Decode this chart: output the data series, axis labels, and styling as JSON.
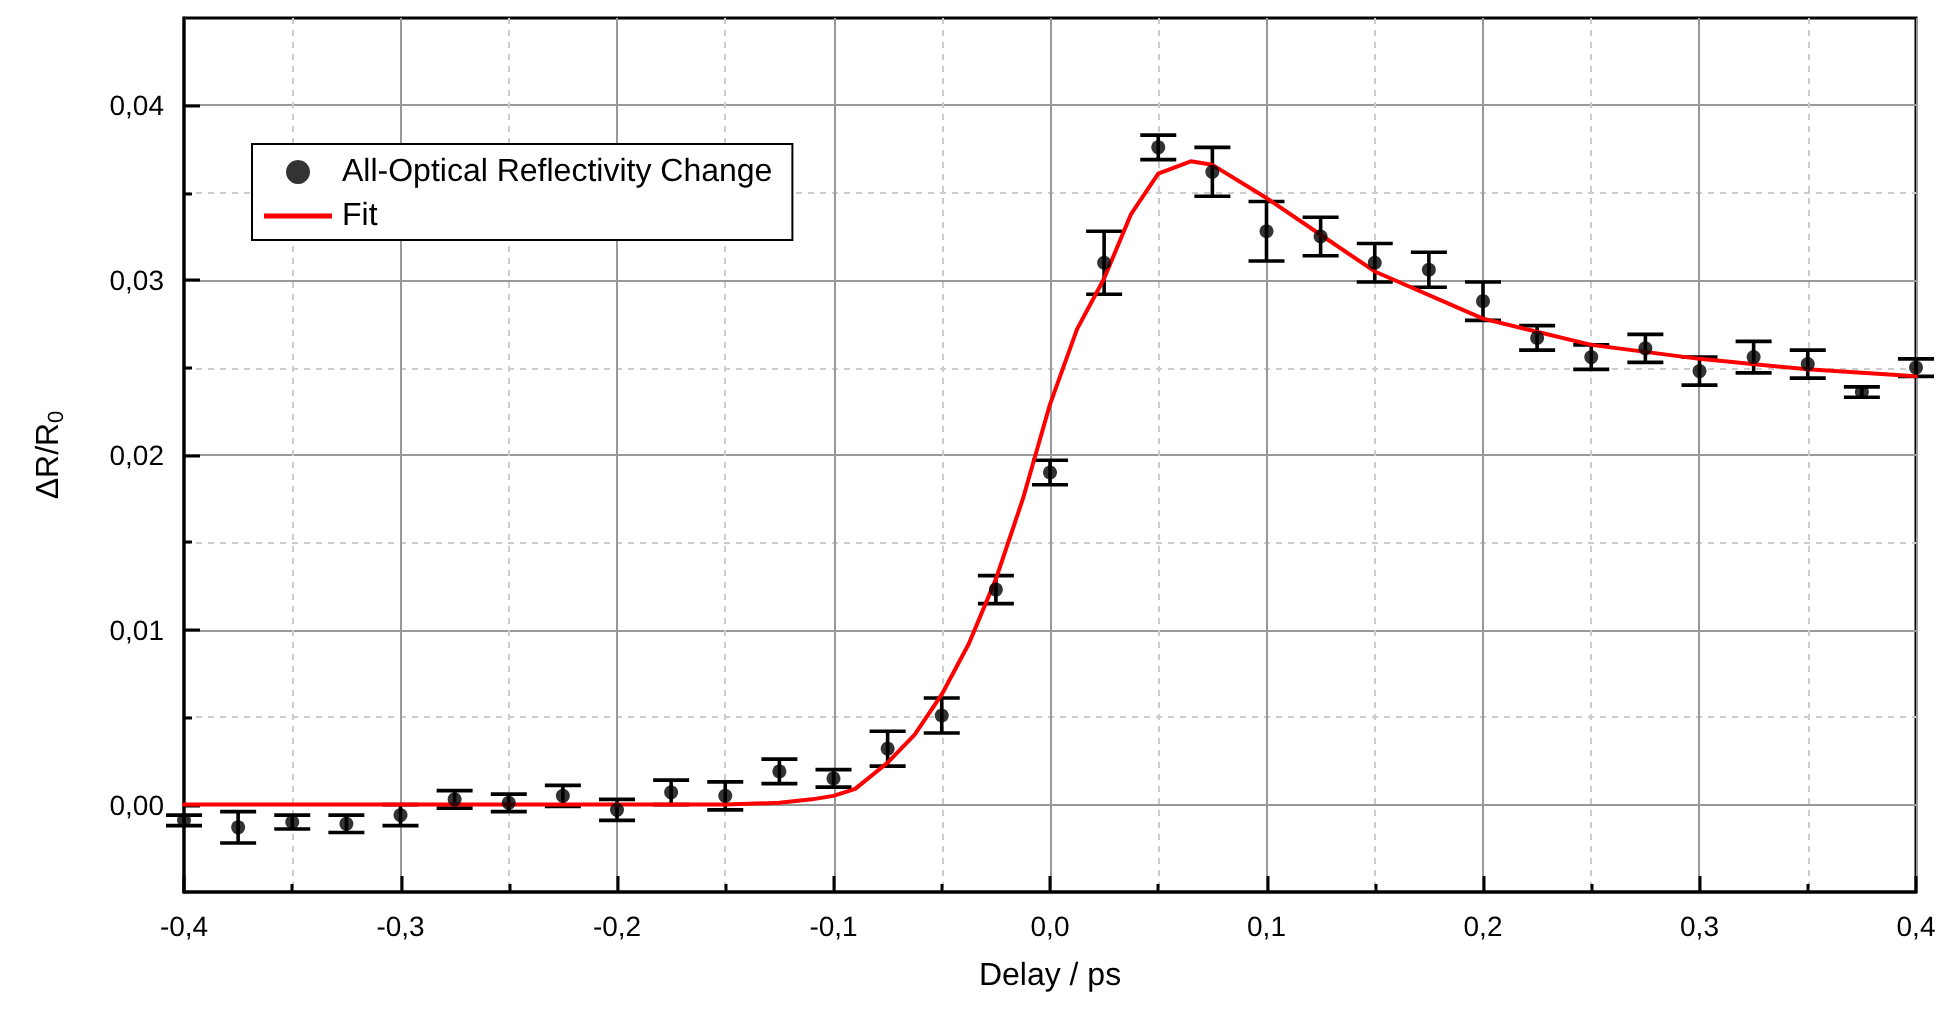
{
  "chart_data": {
    "type": "scatter",
    "xlabel": "Delay / ps",
    "ylabel": "ΔR/R$_{0}$",
    "x": [
      -0.4,
      -0.375,
      -0.35,
      -0.325,
      -0.3,
      -0.275,
      -0.25,
      -0.225,
      -0.2,
      -0.175,
      -0.15,
      -0.125,
      -0.1,
      -0.075,
      -0.05,
      -0.025,
      0,
      0.025,
      0.05,
      0.075,
      0.1,
      0.125,
      0.15,
      0.175,
      0.2,
      0.225,
      0.25,
      0.275,
      0.3,
      0.325,
      0.35,
      0.375,
      0.4
    ],
    "series": [
      {
        "name": "All-Optical Reflectivity Change",
        "color": "#000000",
        "marker": "circle",
        "values": [
          -0.0009,
          -0.0013,
          -0.001,
          -0.0011,
          -0.0006,
          0.0003,
          0.0001,
          0.0005,
          -0.0003,
          0.0007,
          0.0005,
          0.0019,
          0.0015,
          0.0032,
          0.0051,
          0.0123,
          0.019,
          0.031,
          0.0376,
          0.0362,
          0.0328,
          0.0325,
          0.031,
          0.0306,
          0.0288,
          0.0267,
          0.0256,
          0.0261,
          0.0248,
          0.0256,
          0.0252,
          0.0236,
          0.025
        ],
        "errors": [
          0.0003,
          0.0009,
          0.0004,
          0.0005,
          0.0006,
          0.0005,
          0.0005,
          0.0006,
          0.0006,
          0.0007,
          0.0008,
          0.0007,
          0.0005,
          0.001,
          0.001,
          0.0008,
          0.0007,
          0.0018,
          0.0007,
          0.0014,
          0.0017,
          0.0011,
          0.0011,
          0.001,
          0.0011,
          0.0007,
          0.0007,
          0.0008,
          0.0008,
          0.0009,
          0.0008,
          0.0003,
          0.0005
        ]
      },
      {
        "name": "Fit",
        "type": "line",
        "color": "#ff0000",
        "marker": "none",
        "line_style": "solid",
        "x": [
          -0.4,
          -0.3,
          -0.2,
          -0.15,
          -0.125,
          -0.11,
          -0.1,
          -0.09,
          -0.075,
          -0.0625,
          -0.05,
          -0.0375,
          -0.025,
          -0.0125,
          0,
          0.0125,
          0.025,
          0.0375,
          0.05,
          0.065,
          0.075,
          0.1,
          0.125,
          0.15,
          0.2,
          0.25,
          0.3,
          0.35,
          0.4
        ],
        "values": [
          0,
          0,
          0,
          0,
          0.0001,
          0.0003,
          0.0005,
          0.0009,
          0.0024,
          0.004,
          0.0063,
          0.0092,
          0.0129,
          0.0175,
          0.0229,
          0.0272,
          0.0301,
          0.0338,
          0.0361,
          0.0368,
          0.0366,
          0.0347,
          0.0326,
          0.0305,
          0.0278,
          0.0263,
          0.0255,
          0.0249,
          0.0245
        ]
      }
    ],
    "xlim": [
      -0.4,
      0.4
    ],
    "xticks": [
      {
        "value": -0.4,
        "label": "-0,4"
      },
      {
        "value": -0.35,
        "label": null
      },
      {
        "value": -0.3,
        "label": "-0,3"
      },
      {
        "value": -0.25,
        "label": null
      },
      {
        "value": -0.2,
        "label": "-0,2"
      },
      {
        "value": -0.15,
        "label": null
      },
      {
        "value": -0.1,
        "label": "-0,1"
      },
      {
        "value": -0.05,
        "label": null
      },
      {
        "value": 0,
        "label": "0,0"
      },
      {
        "value": 0.05,
        "label": null
      },
      {
        "value": 0.1,
        "label": "0,1"
      },
      {
        "value": 0.15,
        "label": null
      },
      {
        "value": 0.2,
        "label": "0,2"
      },
      {
        "value": 0.25,
        "label": null
      },
      {
        "value": 0.3,
        "label": "0,3"
      },
      {
        "value": 0.35,
        "label": null
      },
      {
        "value": 0.4,
        "label": "0,4"
      }
    ],
    "ylim": [
      -0.005,
      0.045
    ],
    "yticks": [
      {
        "value": 0,
        "label": "0,00"
      },
      {
        "value": 0.005,
        "label": null
      },
      {
        "value": 0.01,
        "label": "0,01"
      },
      {
        "value": 0.015,
        "label": null
      },
      {
        "value": 0.02,
        "label": "0,02"
      },
      {
        "value": 0.025,
        "label": null
      },
      {
        "value": 0.03,
        "label": "0,03"
      },
      {
        "value": 0.035,
        "label": null
      },
      {
        "value": 0.04,
        "label": "0,04"
      }
    ],
    "grid": true,
    "legend": "top left"
  }
}
